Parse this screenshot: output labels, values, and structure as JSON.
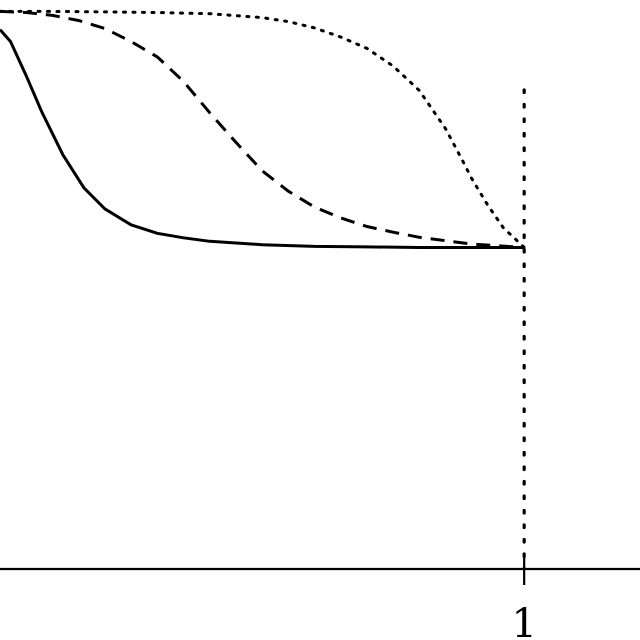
{
  "chart_data": {
    "type": "line",
    "title": "",
    "xlabel": "",
    "ylabel": "",
    "xlim": [
      0,
      1.2
    ],
    "ylim": [
      0,
      1.0
    ],
    "grid": false,
    "legend": "none",
    "x_tick_labels": [
      "1"
    ],
    "x_ticks": [
      1
    ],
    "reference_line": {
      "x": 1,
      "style": "dotted",
      "color": "#000000"
    },
    "series": [
      {
        "style": "solid",
        "color": "#000000",
        "x": [
          0,
          0.02,
          0.05,
          0.08,
          0.12,
          0.16,
          0.2,
          0.25,
          0.3,
          0.35,
          0.4,
          0.5,
          0.6,
          0.7,
          0.8,
          0.9,
          1.0
        ],
        "y": [
          0.948,
          0.927,
          0.867,
          0.803,
          0.728,
          0.67,
          0.633,
          0.605,
          0.59,
          0.582,
          0.576,
          0.57,
          0.567,
          0.566,
          0.565,
          0.565,
          0.565
        ]
      },
      {
        "style": "dashed",
        "color": "#000000",
        "x": [
          0,
          0.05,
          0.1,
          0.15,
          0.2,
          0.25,
          0.3,
          0.35,
          0.4,
          0.45,
          0.5,
          0.55,
          0.6,
          0.65,
          0.7,
          0.75,
          0.8,
          0.85,
          0.9,
          1.0
        ],
        "y": [
          0.98,
          0.978,
          0.973,
          0.964,
          0.95,
          0.927,
          0.9,
          0.857,
          0.802,
          0.75,
          0.7,
          0.664,
          0.636,
          0.617,
          0.602,
          0.592,
          0.583,
          0.577,
          0.571,
          0.565
        ]
      },
      {
        "style": "dotted",
        "color": "#000000",
        "x": [
          0,
          0.1,
          0.2,
          0.3,
          0.4,
          0.5,
          0.55,
          0.6,
          0.65,
          0.7,
          0.75,
          0.8,
          0.85,
          0.88,
          0.9,
          0.93,
          0.96,
          1.0
        ],
        "y": [
          0.98,
          0.98,
          0.979,
          0.978,
          0.976,
          0.969,
          0.962,
          0.951,
          0.935,
          0.915,
          0.884,
          0.841,
          0.774,
          0.722,
          0.686,
          0.64,
          0.6,
          0.565
        ]
      }
    ]
  }
}
